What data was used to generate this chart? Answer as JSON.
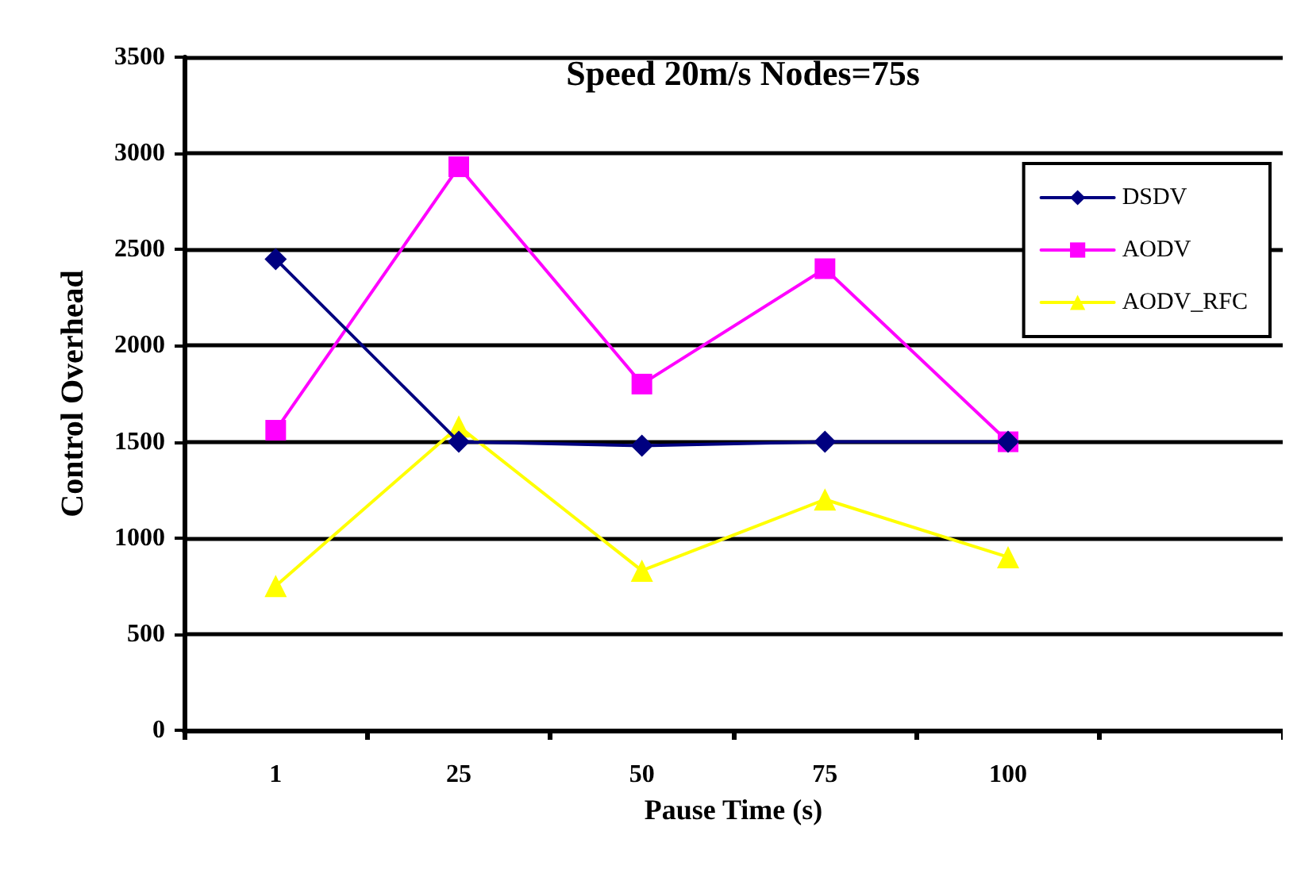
{
  "chart_data": {
    "type": "line",
    "title": "Speed 20m/s Nodes=75s",
    "xlabel": "Pause Time (s)",
    "ylabel": "Control Overhead",
    "categories": [
      "1",
      "25",
      "50",
      "75",
      "100",
      null
    ],
    "series": [
      {
        "name": "DSDV",
        "color": "#000080",
        "marker": "diamond",
        "values": [
          2450,
          1500,
          1480,
          1500,
          1500,
          null
        ]
      },
      {
        "name": "AODV",
        "color": "#ff00ff",
        "marker": "square",
        "values": [
          1560,
          2930,
          1800,
          2400,
          1500,
          null
        ]
      },
      {
        "name": "AODV_RFC",
        "color": "#ffff00",
        "marker": "triangle",
        "values": [
          750,
          1580,
          830,
          1200,
          900,
          null
        ]
      }
    ],
    "ylim": [
      0,
      3500
    ],
    "yticks": [
      0,
      500,
      1000,
      1500,
      2000,
      2500,
      3000,
      3500
    ],
    "grid": "y",
    "legend": "top right",
    "line_style": "solid"
  }
}
